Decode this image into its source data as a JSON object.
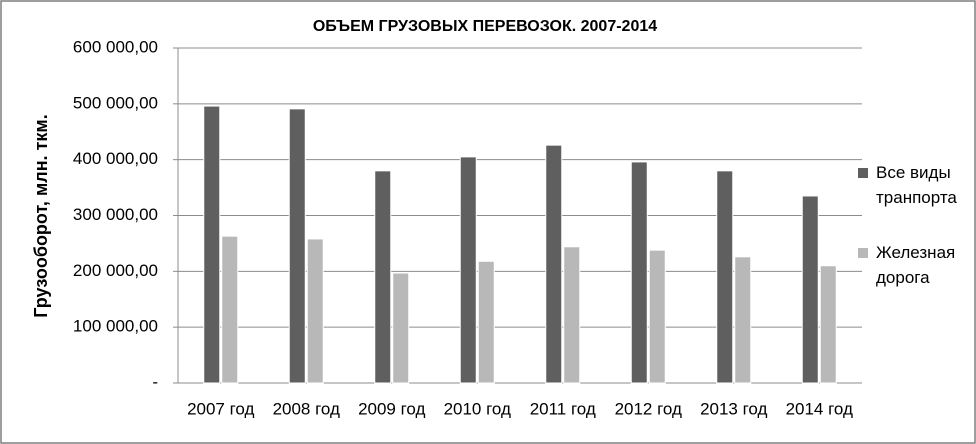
{
  "chart_data": {
    "type": "bar",
    "title": "ОБЪЕМ ГРУЗОВЫХ ПЕРЕВОЗОК. 2007-2014",
    "y_label": "Грузооборот, млн. ткм.",
    "categories": [
      "2007 год",
      "2008 год",
      "2009 год",
      "2010 год",
      "2011 год",
      "2012 год",
      "2013 год",
      "2014 год"
    ],
    "series": [
      {
        "name": "Все виды транпорта",
        "color": "#5f5f5f",
        "values": [
          496000,
          491000,
          380000,
          405000,
          426000,
          396000,
          380000,
          335000
        ]
      },
      {
        "name": "Железная дорога",
        "color": "#b8b8b8",
        "values": [
          263000,
          258000,
          197000,
          218000,
          244000,
          238000,
          226000,
          210000
        ]
      }
    ],
    "ylim": [
      0,
      600000
    ],
    "yticks": [
      {
        "value": 0,
        "label": "-"
      },
      {
        "value": 100000,
        "label": "100 000,00"
      },
      {
        "value": 200000,
        "label": "200 000,00"
      },
      {
        "value": 300000,
        "label": "300 000,00"
      },
      {
        "value": 400000,
        "label": "400 000,00"
      },
      {
        "value": 500000,
        "label": "500 000,00"
      },
      {
        "value": 600000,
        "label": "600 000,00"
      }
    ],
    "grid": true,
    "legend": "right"
  }
}
